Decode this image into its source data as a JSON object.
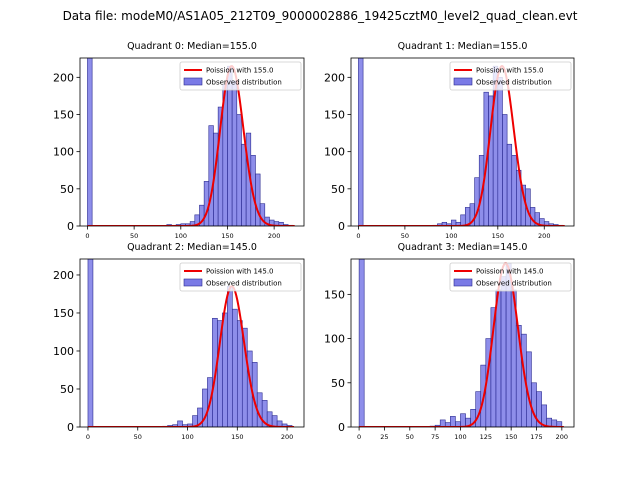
{
  "figure": {
    "title": "Data file: modeM0/AS1A05_212T09_9000002886_19425cztM0_level2_quad_clean.evt"
  },
  "chart_data": [
    {
      "type": "bar",
      "title": "Quadrant 0: Median=155.0",
      "xlim": [
        -8,
        232
      ],
      "ylim": [
        0,
        226
      ],
      "xticks": [
        0,
        50,
        100,
        150,
        200
      ],
      "yticks": [
        0,
        50,
        100,
        150,
        200
      ],
      "bin_width": 5,
      "grid": false,
      "legend_position": "top-right",
      "series": [
        {
          "name": "Observed distribution",
          "bin_starts": [
            0,
            85,
            90,
            95,
            100,
            105,
            110,
            115,
            120,
            125,
            130,
            135,
            140,
            145,
            150,
            155,
            160,
            165,
            170,
            175,
            180,
            185,
            190,
            195,
            200,
            205,
            210,
            215
          ],
          "values": [
            226,
            2,
            1,
            2,
            3,
            3,
            6,
            15,
            28,
            60,
            135,
            125,
            160,
            190,
            215,
            195,
            150,
            110,
            125,
            95,
            70,
            30,
            12,
            8,
            6,
            5,
            2,
            1
          ]
        },
        {
          "name": "Poission with 155.0",
          "mean": 155.0
        }
      ]
    },
    {
      "type": "bar",
      "title": "Quadrant 1: Median=155.0",
      "xlim": [
        -8,
        232
      ],
      "ylim": [
        0,
        226
      ],
      "xticks": [
        0,
        50,
        100,
        150,
        200
      ],
      "yticks": [
        0,
        50,
        100,
        150,
        200
      ],
      "bin_width": 5,
      "grid": false,
      "legend_position": "top-right",
      "series": [
        {
          "name": "Observed distribution",
          "bin_starts": [
            0,
            80,
            85,
            90,
            95,
            100,
            105,
            110,
            115,
            120,
            125,
            130,
            135,
            140,
            145,
            150,
            155,
            160,
            165,
            170,
            175,
            180,
            185,
            190,
            195,
            200,
            205,
            210,
            215
          ],
          "values": [
            226,
            1,
            3,
            5,
            3,
            8,
            5,
            15,
            25,
            30,
            65,
            95,
            180,
            175,
            215,
            200,
            150,
            110,
            95,
            75,
            55,
            50,
            25,
            18,
            10,
            6,
            3,
            2,
            1
          ]
        },
        {
          "name": "Poission with 155.0",
          "mean": 155.0
        }
      ]
    },
    {
      "type": "bar",
      "title": "Quadrant 2: Median=145.0",
      "xlim": [
        -8,
        217
      ],
      "ylim": [
        0,
        221
      ],
      "xticks": [
        0,
        50,
        100,
        150,
        200
      ],
      "yticks": [
        0,
        50,
        100,
        150,
        200
      ],
      "bin_width": 5,
      "grid": false,
      "legend_position": "top-right",
      "series": [
        {
          "name": "Observed distribution",
          "bin_starts": [
            0,
            75,
            80,
            85,
            90,
            95,
            100,
            105,
            110,
            115,
            120,
            125,
            130,
            135,
            140,
            145,
            150,
            155,
            160,
            165,
            170,
            175,
            180,
            185,
            190,
            195,
            200
          ],
          "values": [
            221,
            1,
            2,
            3,
            8,
            3,
            4,
            15,
            25,
            50,
            65,
            143,
            140,
            150,
            185,
            155,
            140,
            130,
            100,
            85,
            45,
            35,
            20,
            15,
            8,
            4,
            2
          ]
        },
        {
          "name": "Poission with 145.0",
          "mean": 145.0
        }
      ]
    },
    {
      "type": "bar",
      "title": "Quadrant 3: Median=145.0",
      "xlim": [
        -8,
        212
      ],
      "ylim": [
        0,
        190
      ],
      "xticks": [
        0,
        25,
        50,
        75,
        100,
        125,
        150,
        175,
        200
      ],
      "yticks": [
        0,
        50,
        100,
        150
      ],
      "bin_width": 5,
      "grid": false,
      "legend_position": "top-right",
      "series": [
        {
          "name": "Observed distribution",
          "bin_starts": [
            0,
            70,
            75,
            80,
            85,
            90,
            95,
            100,
            105,
            110,
            115,
            120,
            125,
            130,
            135,
            140,
            145,
            150,
            155,
            160,
            165,
            170,
            175,
            180,
            185,
            190,
            195
          ],
          "values": [
            190,
            1,
            2,
            8,
            5,
            12,
            6,
            15,
            10,
            20,
            40,
            70,
            100,
            135,
            155,
            170,
            185,
            155,
            115,
            105,
            85,
            50,
            40,
            25,
            10,
            8,
            6
          ]
        },
        {
          "name": "Poission with 145.0",
          "mean": 145.0
        }
      ]
    }
  ]
}
